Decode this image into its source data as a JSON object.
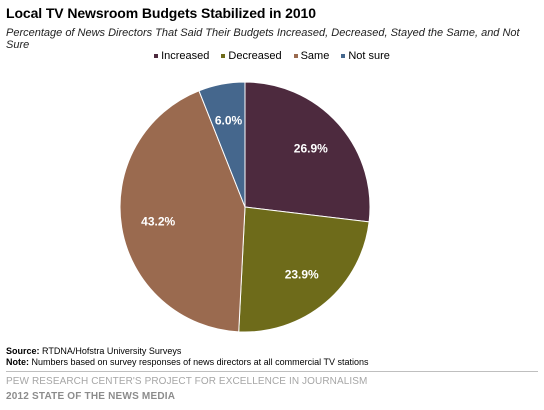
{
  "chart_data": {
    "type": "pie",
    "title": "Local TV Newsroom Budgets Stabilized in 2010",
    "subtitle": "Percentage of News Directors That Said Their Budgets Increased, Decreased, Stayed the Same, and Not Sure",
    "categories": [
      "Increased",
      "Decreased",
      "Same",
      "Not sure"
    ],
    "values": [
      26.9,
      23.9,
      43.2,
      6.0
    ],
    "labels": [
      "26.9%",
      "23.9%",
      "43.2%",
      "6.0%"
    ],
    "colors": [
      "#4d2a3e",
      "#6e6b1a",
      "#9a6a4f",
      "#45678d"
    ],
    "legend_position": "top"
  },
  "source_label": "Source:",
  "source_text": " RTDNA/Hofstra University Surveys",
  "note_label": "Note:",
  "note_text": " Numbers based on survey responses of news directors at all commercial TV stations",
  "footer_org": "PEW RESEARCH CENTER'S PROJECT FOR EXCELLENCE IN JOURNALISM",
  "footer_report": "2012 STATE OF THE NEWS MEDIA"
}
